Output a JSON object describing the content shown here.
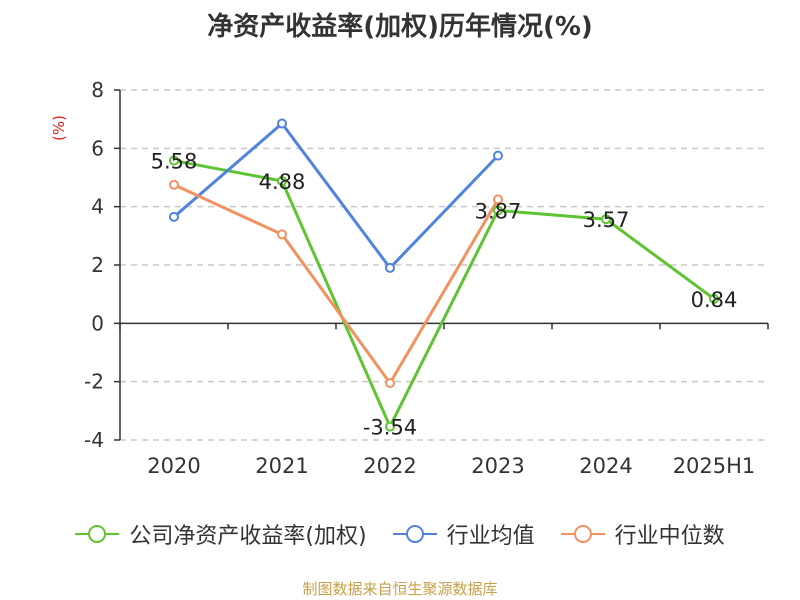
{
  "chart_data": {
    "type": "line",
    "title": "净资产收益率(加权)历年情况(%)",
    "ylabel": "(%)",
    "xlabel": "",
    "categories": [
      "2020",
      "2021",
      "2022",
      "2023",
      "2024",
      "2025H1"
    ],
    "ylim": [
      -4,
      8
    ],
    "yticks": [
      8,
      6,
      4,
      2,
      0,
      -2,
      -4
    ],
    "grid": true,
    "legend_position": "bottom",
    "series": [
      {
        "name": "公司净资产收益率(加权)",
        "color": "#5ec431",
        "values": [
          5.58,
          4.88,
          -3.54,
          3.87,
          3.57,
          0.84
        ],
        "labels": true
      },
      {
        "name": "行业均值",
        "color": "#4f83dd",
        "values": [
          3.65,
          6.85,
          1.9,
          5.75,
          null,
          null
        ],
        "labels": false
      },
      {
        "name": "行业中位数",
        "color": "#f39160",
        "values": [
          4.75,
          3.05,
          -2.05,
          4.25,
          null,
          null
        ],
        "labels": false
      }
    ]
  },
  "source": "制图数据来自恒生聚源数据库"
}
